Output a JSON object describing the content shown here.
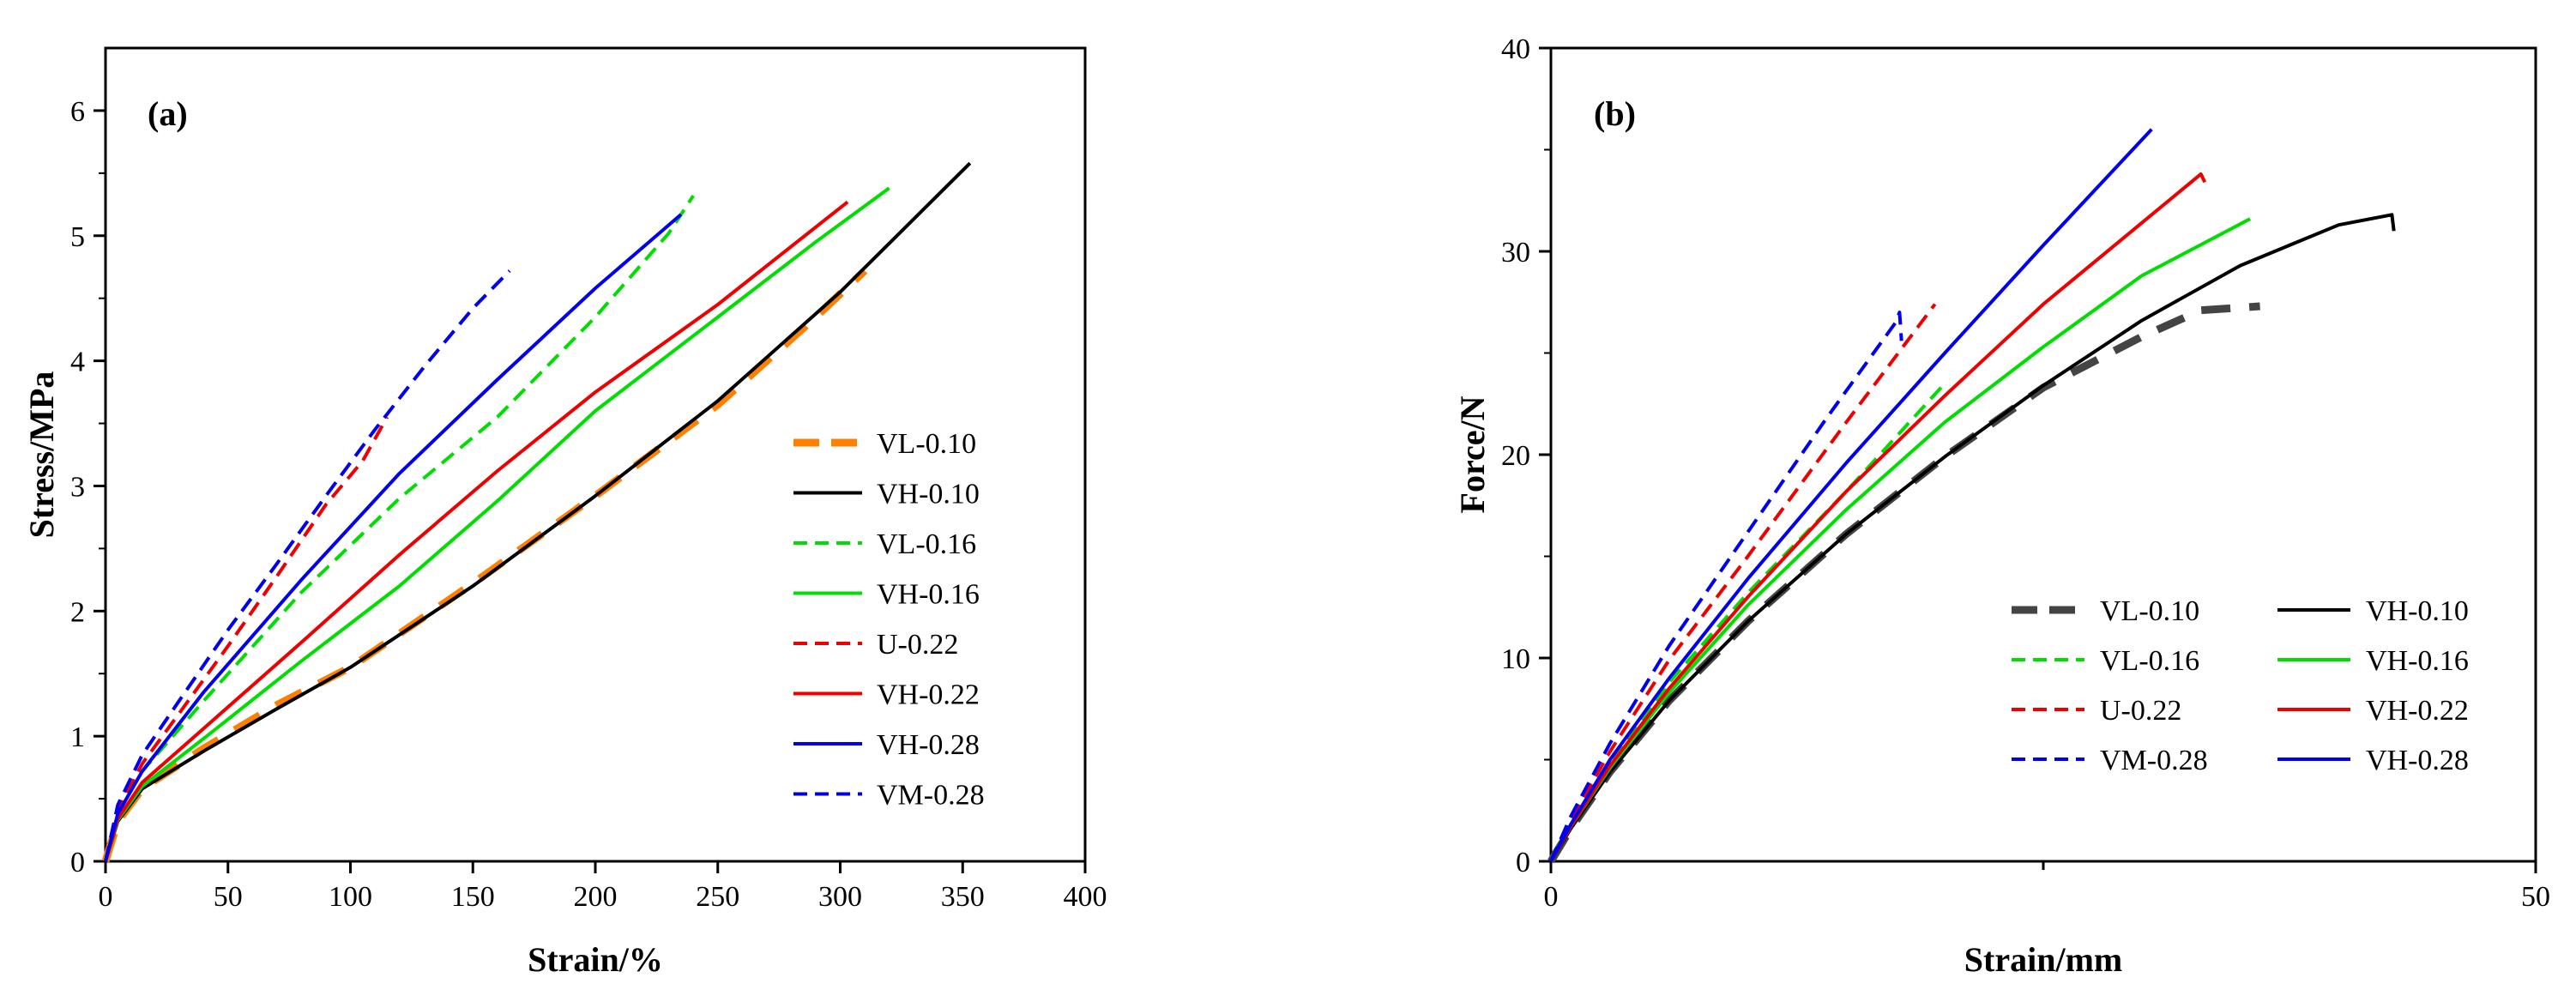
{
  "chart_data": [
    {
      "type": "line",
      "panel_label": "(a)",
      "xlabel": "Strain/%",
      "ylabel": "Stress/MPa",
      "xlim": [
        0,
        400
      ],
      "ylim": [
        0,
        6.5
      ],
      "xticks": [
        0,
        50,
        100,
        150,
        200,
        250,
        300,
        350,
        400
      ],
      "yticks": [
        0,
        1,
        2,
        3,
        4,
        5,
        6
      ],
      "legend_position": "right-middle",
      "series": [
        {
          "name": "VL-0.10",
          "color": "#ff8000",
          "dash": "long",
          "width": "thick",
          "points": [
            [
              0,
              0
            ],
            [
              5,
              0.32
            ],
            [
              15,
              0.58
            ],
            [
              40,
              0.9
            ],
            [
              70,
              1.25
            ],
            [
              100,
              1.55
            ],
            [
              150,
              2.22
            ],
            [
              200,
              2.92
            ],
            [
              250,
              3.65
            ],
            [
              290,
              4.35
            ],
            [
              310,
              4.72
            ]
          ]
        },
        {
          "name": "VH-0.10",
          "color": "#000000",
          "dash": "solid",
          "width": "normal",
          "points": [
            [
              0,
              0
            ],
            [
              5,
              0.32
            ],
            [
              15,
              0.58
            ],
            [
              40,
              0.88
            ],
            [
              70,
              1.22
            ],
            [
              100,
              1.55
            ],
            [
              150,
              2.2
            ],
            [
              200,
              2.92
            ],
            [
              250,
              3.68
            ],
            [
              300,
              4.55
            ],
            [
              353,
              5.58
            ]
          ]
        },
        {
          "name": "VL-0.16",
          "color": "#00dd00",
          "dash": "dash",
          "width": "normal",
          "points": [
            [
              0,
              0
            ],
            [
              5,
              0.38
            ],
            [
              15,
              0.72
            ],
            [
              40,
              1.28
            ],
            [
              80,
              2.15
            ],
            [
              120,
              2.9
            ],
            [
              160,
              3.55
            ],
            [
              200,
              4.35
            ],
            [
              230,
              5.02
            ],
            [
              240,
              5.32
            ]
          ]
        },
        {
          "name": "VH-0.16",
          "color": "#00dd00",
          "dash": "solid",
          "width": "normal",
          "points": [
            [
              0,
              0
            ],
            [
              5,
              0.33
            ],
            [
              15,
              0.6
            ],
            [
              40,
              0.98
            ],
            [
              80,
              1.6
            ],
            [
              120,
              2.2
            ],
            [
              160,
              2.88
            ],
            [
              200,
              3.6
            ],
            [
              250,
              4.35
            ],
            [
              290,
              4.95
            ],
            [
              320,
              5.38
            ]
          ]
        },
        {
          "name": "U-0.22",
          "color": "#ee0000",
          "dash": "dash",
          "width": "normal",
          "points": [
            [
              0,
              0
            ],
            [
              5,
              0.4
            ],
            [
              15,
              0.78
            ],
            [
              30,
              1.18
            ],
            [
              50,
              1.72
            ],
            [
              70,
              2.28
            ],
            [
              90,
              2.85
            ],
            [
              105,
              3.2
            ],
            [
              115,
              3.55
            ]
          ]
        },
        {
          "name": "VH-0.22",
          "color": "#ee0000",
          "dash": "solid",
          "width": "normal",
          "points": [
            [
              0,
              0
            ],
            [
              5,
              0.34
            ],
            [
              15,
              0.63
            ],
            [
              40,
              1.06
            ],
            [
              80,
              1.75
            ],
            [
              120,
              2.45
            ],
            [
              160,
              3.12
            ],
            [
              200,
              3.75
            ],
            [
              250,
              4.45
            ],
            [
              303,
              5.27
            ]
          ]
        },
        {
          "name": "VH-0.28",
          "color": "#0000ee",
          "dash": "solid",
          "width": "normal",
          "points": [
            [
              0,
              0
            ],
            [
              5,
              0.38
            ],
            [
              15,
              0.72
            ],
            [
              40,
              1.35
            ],
            [
              80,
              2.25
            ],
            [
              120,
              3.1
            ],
            [
              160,
              3.85
            ],
            [
              200,
              4.58
            ],
            [
              235,
              5.17
            ]
          ]
        },
        {
          "name": "VM-0.28",
          "color": "#0000ee",
          "dash": "dash",
          "width": "normal",
          "points": [
            [
              0,
              0
            ],
            [
              5,
              0.45
            ],
            [
              15,
              0.85
            ],
            [
              30,
              1.28
            ],
            [
              50,
              1.85
            ],
            [
              70,
              2.38
            ],
            [
              90,
              2.92
            ],
            [
              110,
              3.45
            ],
            [
              130,
              3.95
            ],
            [
              150,
              4.42
            ],
            [
              165,
              4.72
            ]
          ]
        }
      ]
    },
    {
      "type": "line",
      "panel_label": "(b)",
      "xlabel": "Strain/mm",
      "ylabel": "Force/N",
      "xlim": [
        0,
        50
      ],
      "ylim": [
        0,
        40
      ],
      "xticks": [
        0,
        50
      ],
      "xticks_minor": [
        25
      ],
      "yticks": [
        0,
        10,
        20,
        30,
        40
      ],
      "legend_position": "bottom-right",
      "series": [
        {
          "name": "VL-0.10",
          "color": "#444444",
          "dash": "long",
          "width": "thick",
          "points": [
            [
              0,
              0
            ],
            [
              1,
              1.6
            ],
            [
              3,
              4.4
            ],
            [
              6,
              7.9
            ],
            [
              10,
              11.8
            ],
            [
              15,
              16.1
            ],
            [
              20,
              19.9
            ],
            [
              25,
              23.3
            ],
            [
              30,
              25.8
            ],
            [
              33,
              27.1
            ],
            [
              36,
              27.3
            ]
          ]
        },
        {
          "name": "VH-0.10",
          "color": "#000000",
          "dash": "solid",
          "width": "normal",
          "points": [
            [
              0,
              0
            ],
            [
              1,
              1.6
            ],
            [
              3,
              4.4
            ],
            [
              6,
              7.9
            ],
            [
              10,
              11.8
            ],
            [
              15,
              16.1
            ],
            [
              20,
              19.9
            ],
            [
              25,
              23.4
            ],
            [
              30,
              26.6
            ],
            [
              35,
              29.3
            ],
            [
              40,
              31.3
            ],
            [
              42.7,
              31.8
            ],
            [
              42.8,
              31.0
            ]
          ]
        },
        {
          "name": "VL-0.16",
          "color": "#00dd00",
          "dash": "dash",
          "width": "normal",
          "points": [
            [
              0,
              0
            ],
            [
              1,
              1.8
            ],
            [
              3,
              4.8
            ],
            [
              6,
              8.8
            ],
            [
              10,
              13.2
            ],
            [
              15,
              18.2
            ],
            [
              20,
              23.5
            ]
          ]
        },
        {
          "name": "VH-0.16",
          "color": "#00dd00",
          "dash": "solid",
          "width": "normal",
          "points": [
            [
              0,
              0
            ],
            [
              1,
              1.7
            ],
            [
              3,
              4.6
            ],
            [
              6,
              8.3
            ],
            [
              10,
              12.6
            ],
            [
              15,
              17.3
            ],
            [
              20,
              21.6
            ],
            [
              25,
              25.3
            ],
            [
              30,
              28.8
            ],
            [
              35.5,
              31.6
            ]
          ]
        },
        {
          "name": "U-0.22",
          "color": "#ee0000",
          "dash": "dash",
          "width": "normal",
          "points": [
            [
              0,
              0
            ],
            [
              1,
              2.0
            ],
            [
              3,
              5.4
            ],
            [
              6,
              9.9
            ],
            [
              10,
              15.0
            ],
            [
              15,
              21.6
            ],
            [
              19.5,
              27.4
            ]
          ]
        },
        {
          "name": "VH-0.22",
          "color": "#ee0000",
          "dash": "solid",
          "width": "normal",
          "points": [
            [
              0,
              0
            ],
            [
              1,
              1.7
            ],
            [
              3,
              4.7
            ],
            [
              6,
              8.5
            ],
            [
              10,
              13.0
            ],
            [
              15,
              18.2
            ],
            [
              20,
              22.9
            ],
            [
              25,
              27.4
            ],
            [
              30,
              31.4
            ],
            [
              33,
              33.8
            ],
            [
              33.2,
              33.4
            ]
          ]
        },
        {
          "name": "VM-0.28",
          "color": "#0000ee",
          "dash": "dash",
          "width": "normal",
          "points": [
            [
              0,
              0
            ],
            [
              1,
              2.2
            ],
            [
              3,
              5.8
            ],
            [
              6,
              10.6
            ],
            [
              10,
              16.2
            ],
            [
              14,
              21.8
            ],
            [
              17.5,
              26.5
            ],
            [
              17.7,
              27.0
            ],
            [
              17.8,
              25.6
            ]
          ]
        },
        {
          "name": "VH-0.28",
          "color": "#0000ee",
          "dash": "solid",
          "width": "normal",
          "points": [
            [
              0,
              0
            ],
            [
              1,
              1.8
            ],
            [
              3,
              5.0
            ],
            [
              6,
              9.0
            ],
            [
              10,
              13.9
            ],
            [
              15,
              19.6
            ],
            [
              20,
              25.0
            ],
            [
              25,
              30.3
            ],
            [
              30.5,
              36.0
            ]
          ]
        }
      ]
    }
  ]
}
